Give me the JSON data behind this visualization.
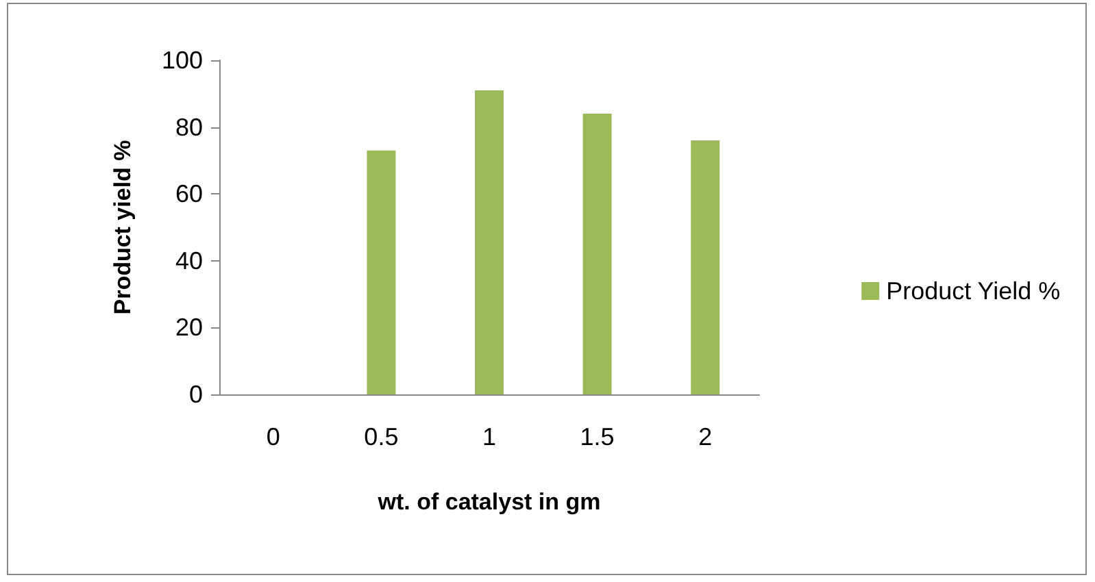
{
  "chart_data": {
    "type": "bar",
    "xlabel": "wt. of catalyst in gm",
    "ylabel": "Product yield %",
    "categories": [
      "0",
      "0.5",
      "1",
      "1.5",
      "2"
    ],
    "series": [
      {
        "name": "Product Yield %",
        "color": "#9bbb59",
        "values": [
          0,
          73,
          91,
          84,
          76
        ]
      }
    ],
    "ylim": [
      0,
      100
    ],
    "yticks": [
      0,
      20,
      40,
      60,
      80,
      100
    ],
    "grid": false,
    "legend": "right"
  }
}
